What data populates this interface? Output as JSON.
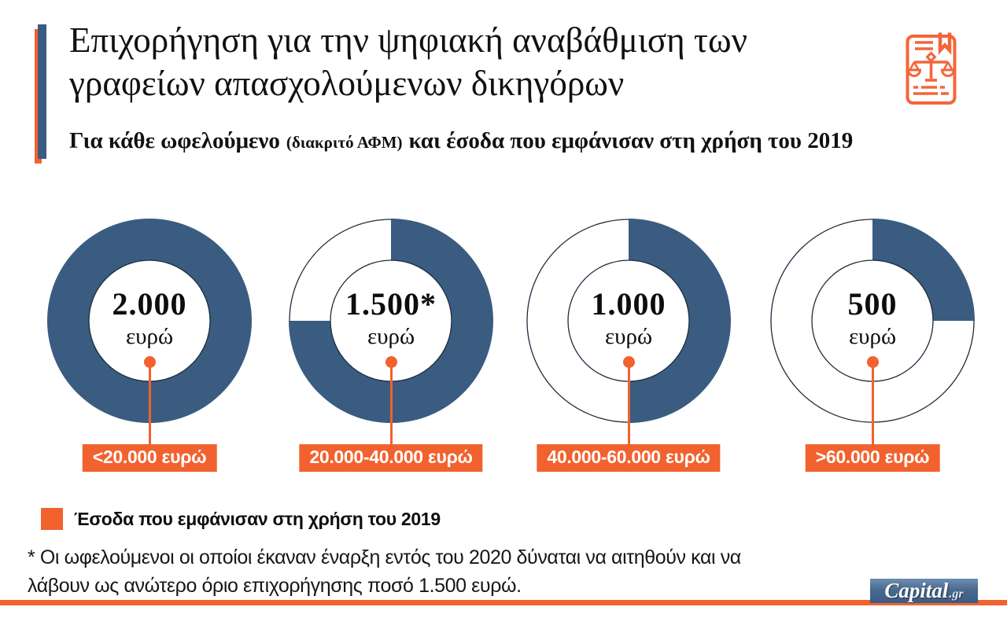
{
  "header": {
    "title": "Επιχορήγηση για την ψηφιακή αναβάθμιση των γραφείων απασχολούμενων δικηγόρων",
    "subtitle_lead": "Για κάθε ωφελούμενο",
    "subtitle_paren": "(διακριτό ΑΦΜ)",
    "subtitle_rest": "και έσοδα που εμφάνισαν στη χρήση του 2019",
    "icon": "legal-document-scales-icon"
  },
  "chart_data": {
    "type": "pie",
    "title": "Επιχορήγηση για την ψηφιακή αναβάθμιση των γραφείων απασχολούμενων δικηγόρων",
    "subtitle": "Για κάθε ωφελούμενο (διακριτό ΑΦΜ) και έσοδα που εμφάνισαν στη χρήση του 2019",
    "legend_position": "bottom-left",
    "donuts": [
      {
        "amount": "2.000",
        "unit": "ευρώ",
        "fraction": 1.0,
        "range": "<20.000 ευρώ"
      },
      {
        "amount": "1.500*",
        "unit": "ευρώ",
        "fraction": 0.75,
        "range": "20.000-40.000 ευρώ"
      },
      {
        "amount": "1.000",
        "unit": "ευρώ",
        "fraction": 0.5,
        "range": "40.000-60.000 ευρώ"
      },
      {
        "amount": "500",
        "unit": "ευρώ",
        "fraction": 0.25,
        "range": ">60.000 ευρώ"
      }
    ],
    "colors": {
      "fill": "#3a5c80",
      "outline": "#1d2d3e",
      "accent": "#f2622e"
    }
  },
  "legend": {
    "label": "Έσοδα που εμφάνισαν στη χρήση του 2019",
    "swatch_color": "#f2622e"
  },
  "footnote": {
    "text": "* Οι ωφελούμενοι οι οποίοι έκαναν έναρξη εντός του 2020 δύναται να αιτηθούν και να λάβουν ως ανώτερο όριο επιχορήγησης ποσό 1.500 ευρώ."
  },
  "footer": {
    "logo_main": "Capital",
    "logo_suffix": ".gr"
  }
}
